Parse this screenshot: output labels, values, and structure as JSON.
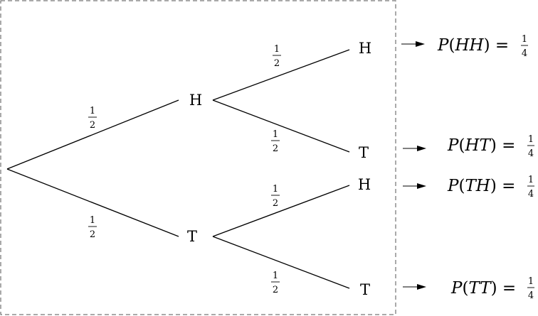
{
  "nodes": {
    "first_heads": "H",
    "first_tails": "T",
    "hh": "H",
    "ht": "T",
    "th": "H",
    "tt": "T"
  },
  "edge_probabilities": {
    "root_heads": {
      "num": "1",
      "den": "2"
    },
    "root_tails": {
      "num": "1",
      "den": "2"
    },
    "h_to_h": {
      "num": "1",
      "den": "2"
    },
    "h_to_t": {
      "num": "1",
      "den": "2"
    },
    "t_to_h": {
      "num": "1",
      "den": "2"
    },
    "t_to_t": {
      "num": "1",
      "den": "2"
    }
  },
  "outcomes": [
    {
      "event": "HH",
      "prob_num": "1",
      "prob_den": "4"
    },
    {
      "event": "HT",
      "prob_num": "1",
      "prob_den": "4"
    },
    {
      "event": "TH",
      "prob_num": "1",
      "prob_den": "4"
    },
    {
      "event": "TT",
      "prob_num": "1",
      "prob_den": "4"
    }
  ]
}
